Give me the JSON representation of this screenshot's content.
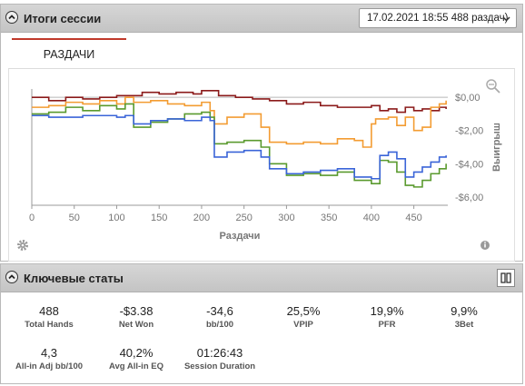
{
  "session": {
    "title": "Итоги сессии",
    "selector_value": "17.02.2021 18:55 488 раздач)"
  },
  "tabs": [
    {
      "label": "РАЗДАЧИ"
    }
  ],
  "chart_data": {
    "type": "line",
    "xlabel": "Раздачи",
    "ylabel": "Выигрыш",
    "xlim": [
      0,
      490
    ],
    "ylim": [
      -6.5,
      0.5
    ],
    "x_ticks": [
      "0",
      "50",
      "100",
      "150",
      "200",
      "250",
      "300",
      "350",
      "400",
      "450"
    ],
    "y_ticks": [
      {
        "v": 0,
        "label": "$0,00"
      },
      {
        "v": -2,
        "label": "-$2,00"
      },
      {
        "v": -4,
        "label": "-$4,00"
      },
      {
        "v": -6,
        "label": "-$6,00"
      }
    ],
    "series": [
      {
        "color": "#8b1a1a",
        "x": [
          0,
          20,
          40,
          60,
          80,
          100,
          120,
          130,
          150,
          170,
          190,
          200,
          220,
          240,
          260,
          280,
          300,
          320,
          340,
          360,
          380,
          400,
          410,
          420,
          430,
          440,
          450,
          460,
          470,
          480,
          488
        ],
        "y": [
          0,
          -0.2,
          0,
          -0.1,
          0,
          0.1,
          0.1,
          0.3,
          0.2,
          0.3,
          0.2,
          0.4,
          0.1,
          0,
          -0.1,
          -0.2,
          -0.4,
          -0.3,
          -0.5,
          -0.6,
          -0.6,
          -0.5,
          -0.8,
          -0.7,
          -0.9,
          -0.6,
          -0.8,
          -0.7,
          -0.8,
          -0.6,
          -0.7
        ]
      },
      {
        "color": "#f39c32",
        "x": [
          0,
          20,
          40,
          60,
          80,
          100,
          110,
          120,
          140,
          160,
          180,
          200,
          210,
          215,
          230,
          250,
          270,
          280,
          300,
          320,
          340,
          360,
          380,
          390,
          400,
          405,
          420,
          430,
          440,
          450,
          460,
          470,
          480,
          488
        ],
        "y": [
          -0.6,
          -0.5,
          -0.3,
          -0.4,
          -0.2,
          -0.4,
          0,
          -0.3,
          -0.2,
          -0.4,
          -0.5,
          -0.3,
          -0.8,
          -1.6,
          -1.2,
          -1.0,
          -1.8,
          -2.7,
          -2.8,
          -2.7,
          -2.8,
          -2.5,
          -2.6,
          -3.0,
          -1.6,
          -1.3,
          -1.2,
          -1.7,
          -1.2,
          -2.0,
          -1.8,
          -0.6,
          -0.4,
          -0.2
        ]
      },
      {
        "color": "#5a9a2e",
        "x": [
          0,
          20,
          40,
          60,
          80,
          100,
          110,
          120,
          140,
          160,
          180,
          200,
          210,
          215,
          230,
          250,
          270,
          280,
          300,
          320,
          340,
          360,
          380,
          400,
          410,
          420,
          430,
          440,
          450,
          460,
          470,
          480,
          488
        ],
        "y": [
          -1.0,
          -0.9,
          -0.6,
          -0.8,
          -0.5,
          -0.7,
          -0.4,
          -1.8,
          -1.5,
          -1.3,
          -1.0,
          -0.9,
          -1.2,
          -2.8,
          -2.7,
          -2.6,
          -3.0,
          -4.0,
          -4.7,
          -4.6,
          -4.7,
          -4.5,
          -5.0,
          -5.2,
          -3.8,
          -3.9,
          -4.5,
          -5.3,
          -5.4,
          -5.0,
          -4.6,
          -4.3,
          -4.0
        ]
      },
      {
        "color": "#3a64d8",
        "x": [
          0,
          20,
          40,
          60,
          80,
          100,
          110,
          120,
          140,
          160,
          180,
          200,
          210,
          215,
          230,
          250,
          270,
          280,
          300,
          320,
          340,
          360,
          380,
          400,
          410,
          420,
          430,
          440,
          450,
          460,
          470,
          480,
          488
        ],
        "y": [
          -1.1,
          -1.2,
          -1.2,
          -1.1,
          -1.1,
          -1.2,
          -1.1,
          -1.6,
          -1.4,
          -1.3,
          -1.4,
          -1.2,
          -1.4,
          -3.6,
          -3.3,
          -3.2,
          -3.6,
          -4.3,
          -4.6,
          -4.5,
          -4.4,
          -4.3,
          -4.8,
          -4.9,
          -3.5,
          -3.3,
          -3.7,
          -4.8,
          -4.5,
          -4.2,
          -3.9,
          -3.6,
          -3.5
        ]
      }
    ]
  },
  "keystats": {
    "title": "Ключевые статы",
    "items": [
      {
        "value": "488",
        "label": "Total Hands"
      },
      {
        "value": "-$3.38",
        "label": "Net Won"
      },
      {
        "value": "-34,6",
        "label": "bb/100"
      },
      {
        "value": "25,5%",
        "label": "VPIP"
      },
      {
        "value": "19,9%",
        "label": "PFR"
      },
      {
        "value": "9,9%",
        "label": "3Bet"
      },
      {
        "value": "4,3",
        "label": "All-in Adj bb/100"
      },
      {
        "value": "40,2%",
        "label": "Avg All-in EQ"
      },
      {
        "value": "01:26:43",
        "label": "Session Duration"
      }
    ]
  }
}
